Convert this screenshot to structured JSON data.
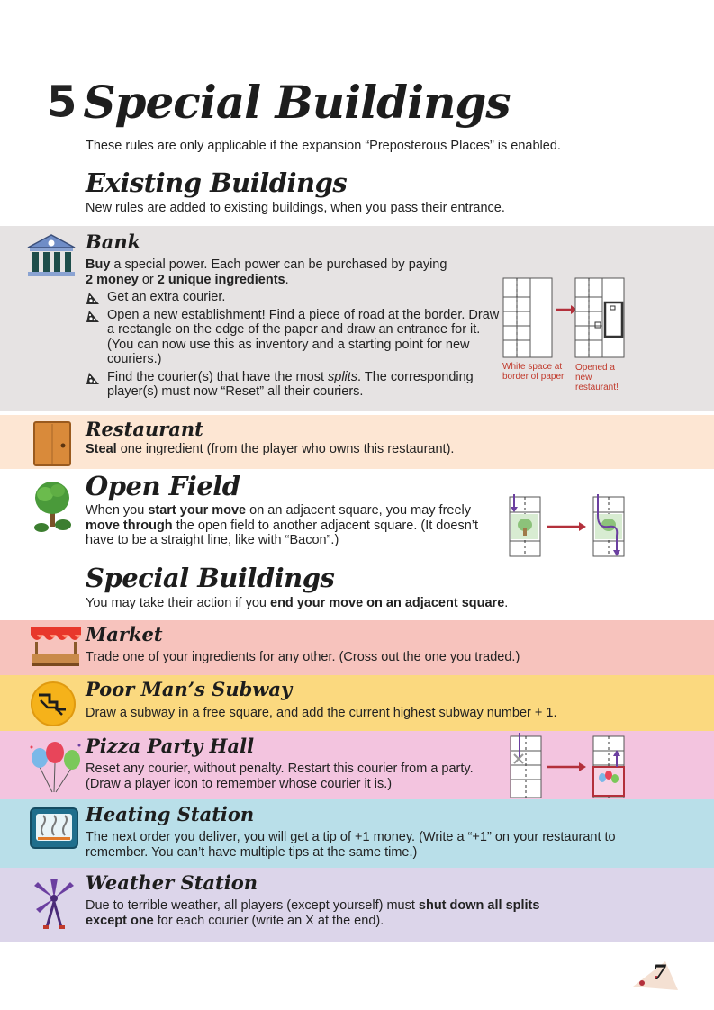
{
  "header": {
    "number": "5",
    "title": "Special Buildings",
    "intro": "These rules are only applicable if the expansion “Preposterous Places” is enabled."
  },
  "existing": {
    "heading": "Existing Buildings",
    "intro": "New rules are added to existing buildings, when you pass their entrance."
  },
  "bank": {
    "title": "Bank",
    "line1_bold": "Buy",
    "line1_rest": " a special power. Each power can be purchased by paying",
    "line2_bold1": "2 money",
    "line2_or": " or ",
    "line2_bold2": "2 unique ingredients",
    "line2_end": ".",
    "bullets": [
      "Get an extra courier.",
      "Open a new establishment! Find a piece of road at the border. Draw a rectangle on the edge of the paper and draw an entrance for it. (You can now use this as inventory and a starting point for new couriers.)"
    ],
    "bullet3_pre": "Find the courier(s) that have the most ",
    "bullet3_em": "splits",
    "bullet3_post": ". The corresponding player(s) must now “Reset” all their couriers.",
    "caption_left": "White space at border of paper",
    "caption_right": "Opened a new restaurant!"
  },
  "restaurant": {
    "title": "Restaurant",
    "bold": "Steal",
    "rest": " one ingredient (from the player who owns this restaurant)."
  },
  "open_field": {
    "title": "Open Field",
    "pre": "When you ",
    "bold1": "start your move",
    "mid1": " on an adjacent square, you may freely ",
    "bold2": "move through",
    "post": " the open field to another adjacent square. (It doesn’t have to be a straight line, like with “Bacon”.)"
  },
  "special": {
    "heading": "Special Buildings",
    "pre": "You may take their action if you ",
    "bold": "end your move on an adjacent square",
    "post": "."
  },
  "market": {
    "title": "Market",
    "text": "Trade one of your ingredients for any other. (Cross out the one you traded.)"
  },
  "subway": {
    "title": "Poor Man’s Subway",
    "text": "Draw a subway in a free square, and add the current highest subway number + 1."
  },
  "pizza": {
    "title": "Pizza Party Hall",
    "text": "Reset any courier, without penalty. Restart this courier from a party. (Draw a player icon to remember whose courier it is.)"
  },
  "heating": {
    "title": "Heating Station",
    "text": "The next order you deliver, you will get a tip of +1 money. (Write a “+1” on your restaurant to remember. You can’t have multiple tips at the same time.)"
  },
  "weather": {
    "title": "Weather Station",
    "pre": "Due to terrible weather, all players (except yourself) must ",
    "bold1": "shut down all splits",
    "bold2": "except one",
    "post": " for each courier (write an X at the end)."
  },
  "footer": {
    "page": "7"
  },
  "colors": {
    "bank_bg": "#e6e3e3",
    "restaurant_bg": "#fde6d3",
    "market_bg": "#f7c3bd",
    "subway_bg": "#fbd97f",
    "pizza_bg": "#f3c4df",
    "heating_bg": "#b9dfe9",
    "weather_bg": "#dcd5ea",
    "accent_red": "#b3303b"
  },
  "icons": [
    "bank-icon",
    "door-icon",
    "tree-icon",
    "market-stall-icon",
    "subway-sign-icon",
    "balloons-icon",
    "oven-icon",
    "windmill-icon",
    "pizza-bullet-icon",
    "pizza-slice-icon"
  ]
}
